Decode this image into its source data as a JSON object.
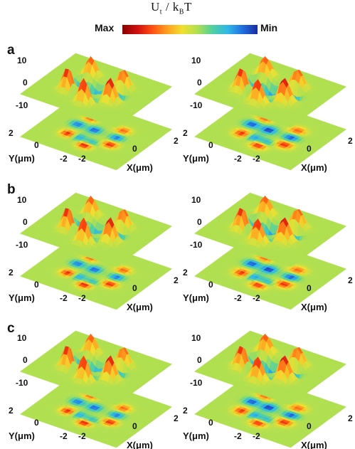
{
  "colorbar": {
    "title_main": "U",
    "title_sub_t": "t",
    "title_slash": " / k",
    "title_sub_b": "B",
    "title_end": "T",
    "max_label": "Max",
    "min_label": "Min"
  },
  "rows": [
    {
      "letter": "a"
    },
    {
      "letter": "b"
    },
    {
      "letter": "c"
    }
  ],
  "axes": {
    "z_ticks": [
      "10",
      "0",
      "-10"
    ],
    "y_label": "Y(μm)",
    "x_label": "X(μm)",
    "y_ticks": [
      "2",
      "0",
      "-2"
    ],
    "x_ticks": [
      "-2",
      "0",
      "2"
    ]
  }
}
